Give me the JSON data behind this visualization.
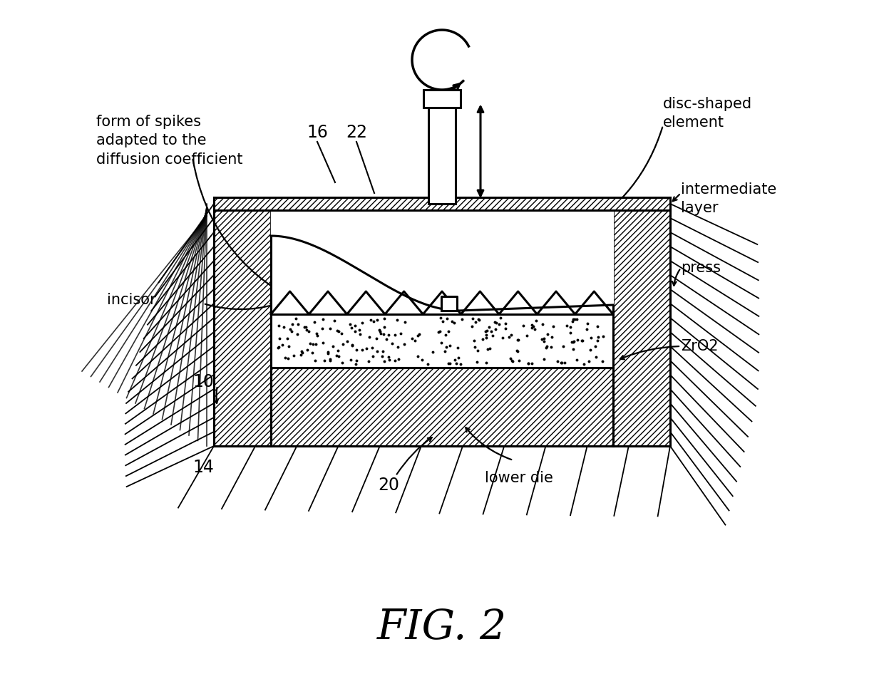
{
  "title": "FIG. 2",
  "title_fontsize": 42,
  "bg_color": "#ffffff",
  "line_color": "#000000",
  "labels": {
    "form_of_spikes": "form of spikes\nadapted to the\ndiffusion coefficient",
    "disc_shaped": "disc-shaped\nelement",
    "intermediate_layer": "intermediate\nlayer",
    "press": "press",
    "zro2": "ZrO2",
    "lower_die": "lower die",
    "incisor": "incisor",
    "num_16": "16",
    "num_22": "22",
    "num_10": "10",
    "num_14": "14",
    "num_20": "20"
  },
  "label_fontsize": 15,
  "num_fontsize": 17
}
